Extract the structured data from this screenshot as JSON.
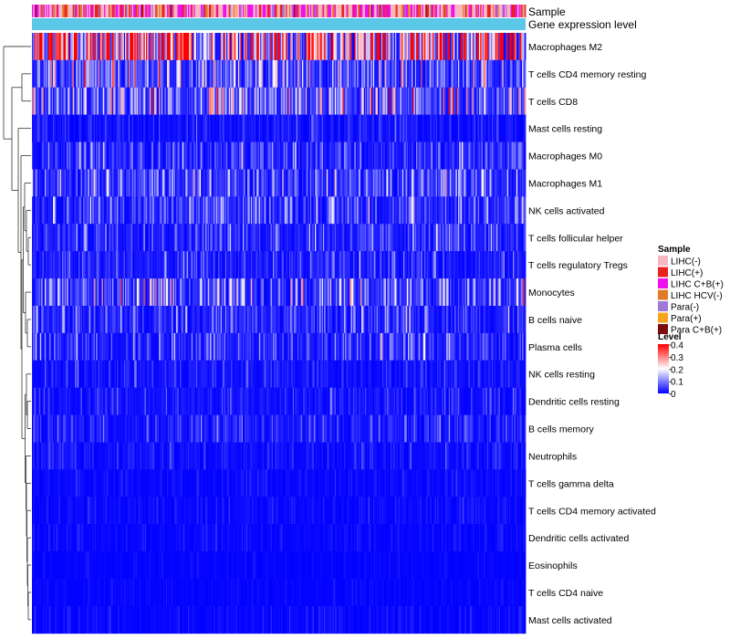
{
  "chart_data": {
    "type": "heatmap",
    "title": "",
    "annotation_rows": [
      "Sample",
      "Gene expression level"
    ],
    "rows": [
      "Macrophages M2",
      "T cells CD4 memory resting",
      "T cells CD8",
      "Mast cells resting",
      "Macrophages M0",
      "Macrophages M1",
      "NK cells activated",
      "T cells follicular helper",
      "T cells regulatory  Tregs",
      "Monocytes",
      "B cells naive",
      "Plasma cells",
      "NK cells resting",
      "Dendritic cells resting",
      "B cells memory",
      "Neutrophils",
      "T cells gamma delta",
      "T cells CD4 memory activated",
      "Dendritic cells activated",
      "Eosinophils",
      "T cells CD4 naive",
      "Mast cells activated"
    ],
    "approx_row_mean_level": [
      0.3,
      0.08,
      0.09,
      0.02,
      0.04,
      0.06,
      0.05,
      0.04,
      0.03,
      0.07,
      0.04,
      0.04,
      0.02,
      0.02,
      0.025,
      0.015,
      0.01,
      0.01,
      0.008,
      0.005,
      0.005,
      0.008
    ],
    "n_columns": 424,
    "gene_expression_level_color": "#5bc8e8",
    "sample_legend": {
      "title": "Sample",
      "entries": [
        {
          "label": "LIHC(-)",
          "color": "#f7b6c2"
        },
        {
          "label": "LIHC(+)",
          "color": "#e8231e"
        },
        {
          "label": "LIHC C+B(+)",
          "color": "#ee11ee"
        },
        {
          "label": "LIHC HCV(-)",
          "color": "#e07a28"
        },
        {
          "label": "Para(-)",
          "color": "#9e79d8"
        },
        {
          "label": "Para(+)",
          "color": "#f5a51a"
        },
        {
          "label": "Para C+B(+)",
          "color": "#7b0d0d"
        }
      ]
    },
    "level_legend": {
      "title": "Level",
      "range": [
        0,
        0.4
      ],
      "ticks": [
        "0.4",
        "0.3",
        "0.2",
        "0.1",
        "0"
      ],
      "colors": [
        "#0000ff",
        "#ffffff",
        "#ff0000"
      ]
    },
    "dendrogram": "row clustering tree (left side)"
  }
}
